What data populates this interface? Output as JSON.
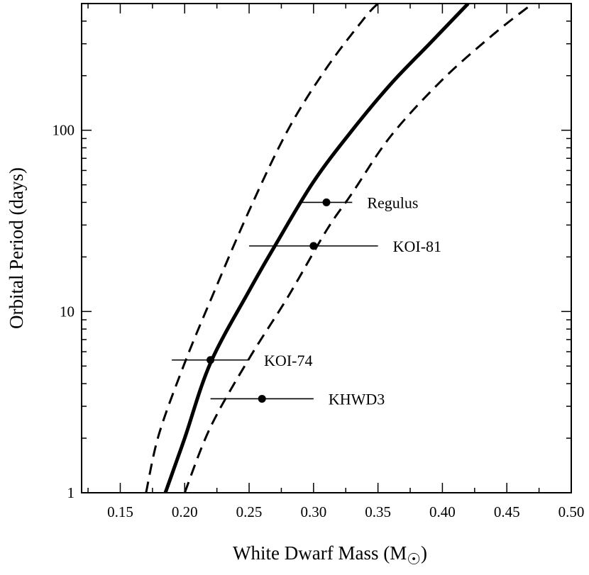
{
  "chart_data": {
    "type": "line",
    "xlabel": "White Dwarf Mass (M",
    "xlabel_subscript": "☉",
    "xlabel_close": ")",
    "ylabel": "Orbital Period (days)",
    "x_range": [
      0.12,
      0.5
    ],
    "y_range": [
      1,
      500
    ],
    "y_scale": "log",
    "x_ticks": [
      0.15,
      0.2,
      0.25,
      0.3,
      0.35,
      0.4,
      0.45,
      0.5
    ],
    "x_tick_labels": [
      "0.15",
      "0.20",
      "0.25",
      "0.30",
      "0.35",
      "0.40",
      "0.45",
      "0.50"
    ],
    "y_ticks": [
      1,
      10,
      100
    ],
    "y_tick_labels": [
      "1",
      "10",
      "100"
    ],
    "series": [
      {
        "name": "relation",
        "style": "solid",
        "points": [
          [
            0.185,
            1.0
          ],
          [
            0.2,
            2.0
          ],
          [
            0.22,
            5.2
          ],
          [
            0.25,
            13.0
          ],
          [
            0.27,
            23.0
          ],
          [
            0.3,
            52.0
          ],
          [
            0.33,
            100.0
          ],
          [
            0.36,
            180.0
          ],
          [
            0.39,
            300.0
          ],
          [
            0.42,
            500.0
          ]
        ]
      },
      {
        "name": "upper-bound",
        "style": "dashed",
        "points": [
          [
            0.17,
            1.0
          ],
          [
            0.18,
            2.1
          ],
          [
            0.2,
            5.2
          ],
          [
            0.22,
            11.5
          ],
          [
            0.25,
            36.0
          ],
          [
            0.28,
            100.0
          ],
          [
            0.31,
            220.0
          ],
          [
            0.34,
            420.0
          ],
          [
            0.35,
            500.0
          ]
        ]
      },
      {
        "name": "lower-bound",
        "style": "dashed",
        "points": [
          [
            0.2,
            1.0
          ],
          [
            0.22,
            2.3
          ],
          [
            0.25,
            5.5
          ],
          [
            0.28,
            12.0
          ],
          [
            0.31,
            28.0
          ],
          [
            0.33,
            45.0
          ],
          [
            0.36,
            93.0
          ],
          [
            0.4,
            190.0
          ],
          [
            0.44,
            340.0
          ],
          [
            0.47,
            500.0
          ]
        ]
      }
    ],
    "points": [
      {
        "label": "Regulus",
        "x": 0.31,
        "y": 40,
        "xerr": [
          0.29,
          0.33
        ]
      },
      {
        "label": "KOI-81",
        "x": 0.3,
        "y": 23,
        "xerr": [
          0.25,
          0.35
        ]
      },
      {
        "label": "KOI-74",
        "x": 0.22,
        "y": 5.4,
        "xerr": [
          0.19,
          0.25
        ]
      },
      {
        "label": "KHWD3",
        "x": 0.26,
        "y": 3.3,
        "xerr": [
          0.22,
          0.3
        ]
      }
    ]
  }
}
